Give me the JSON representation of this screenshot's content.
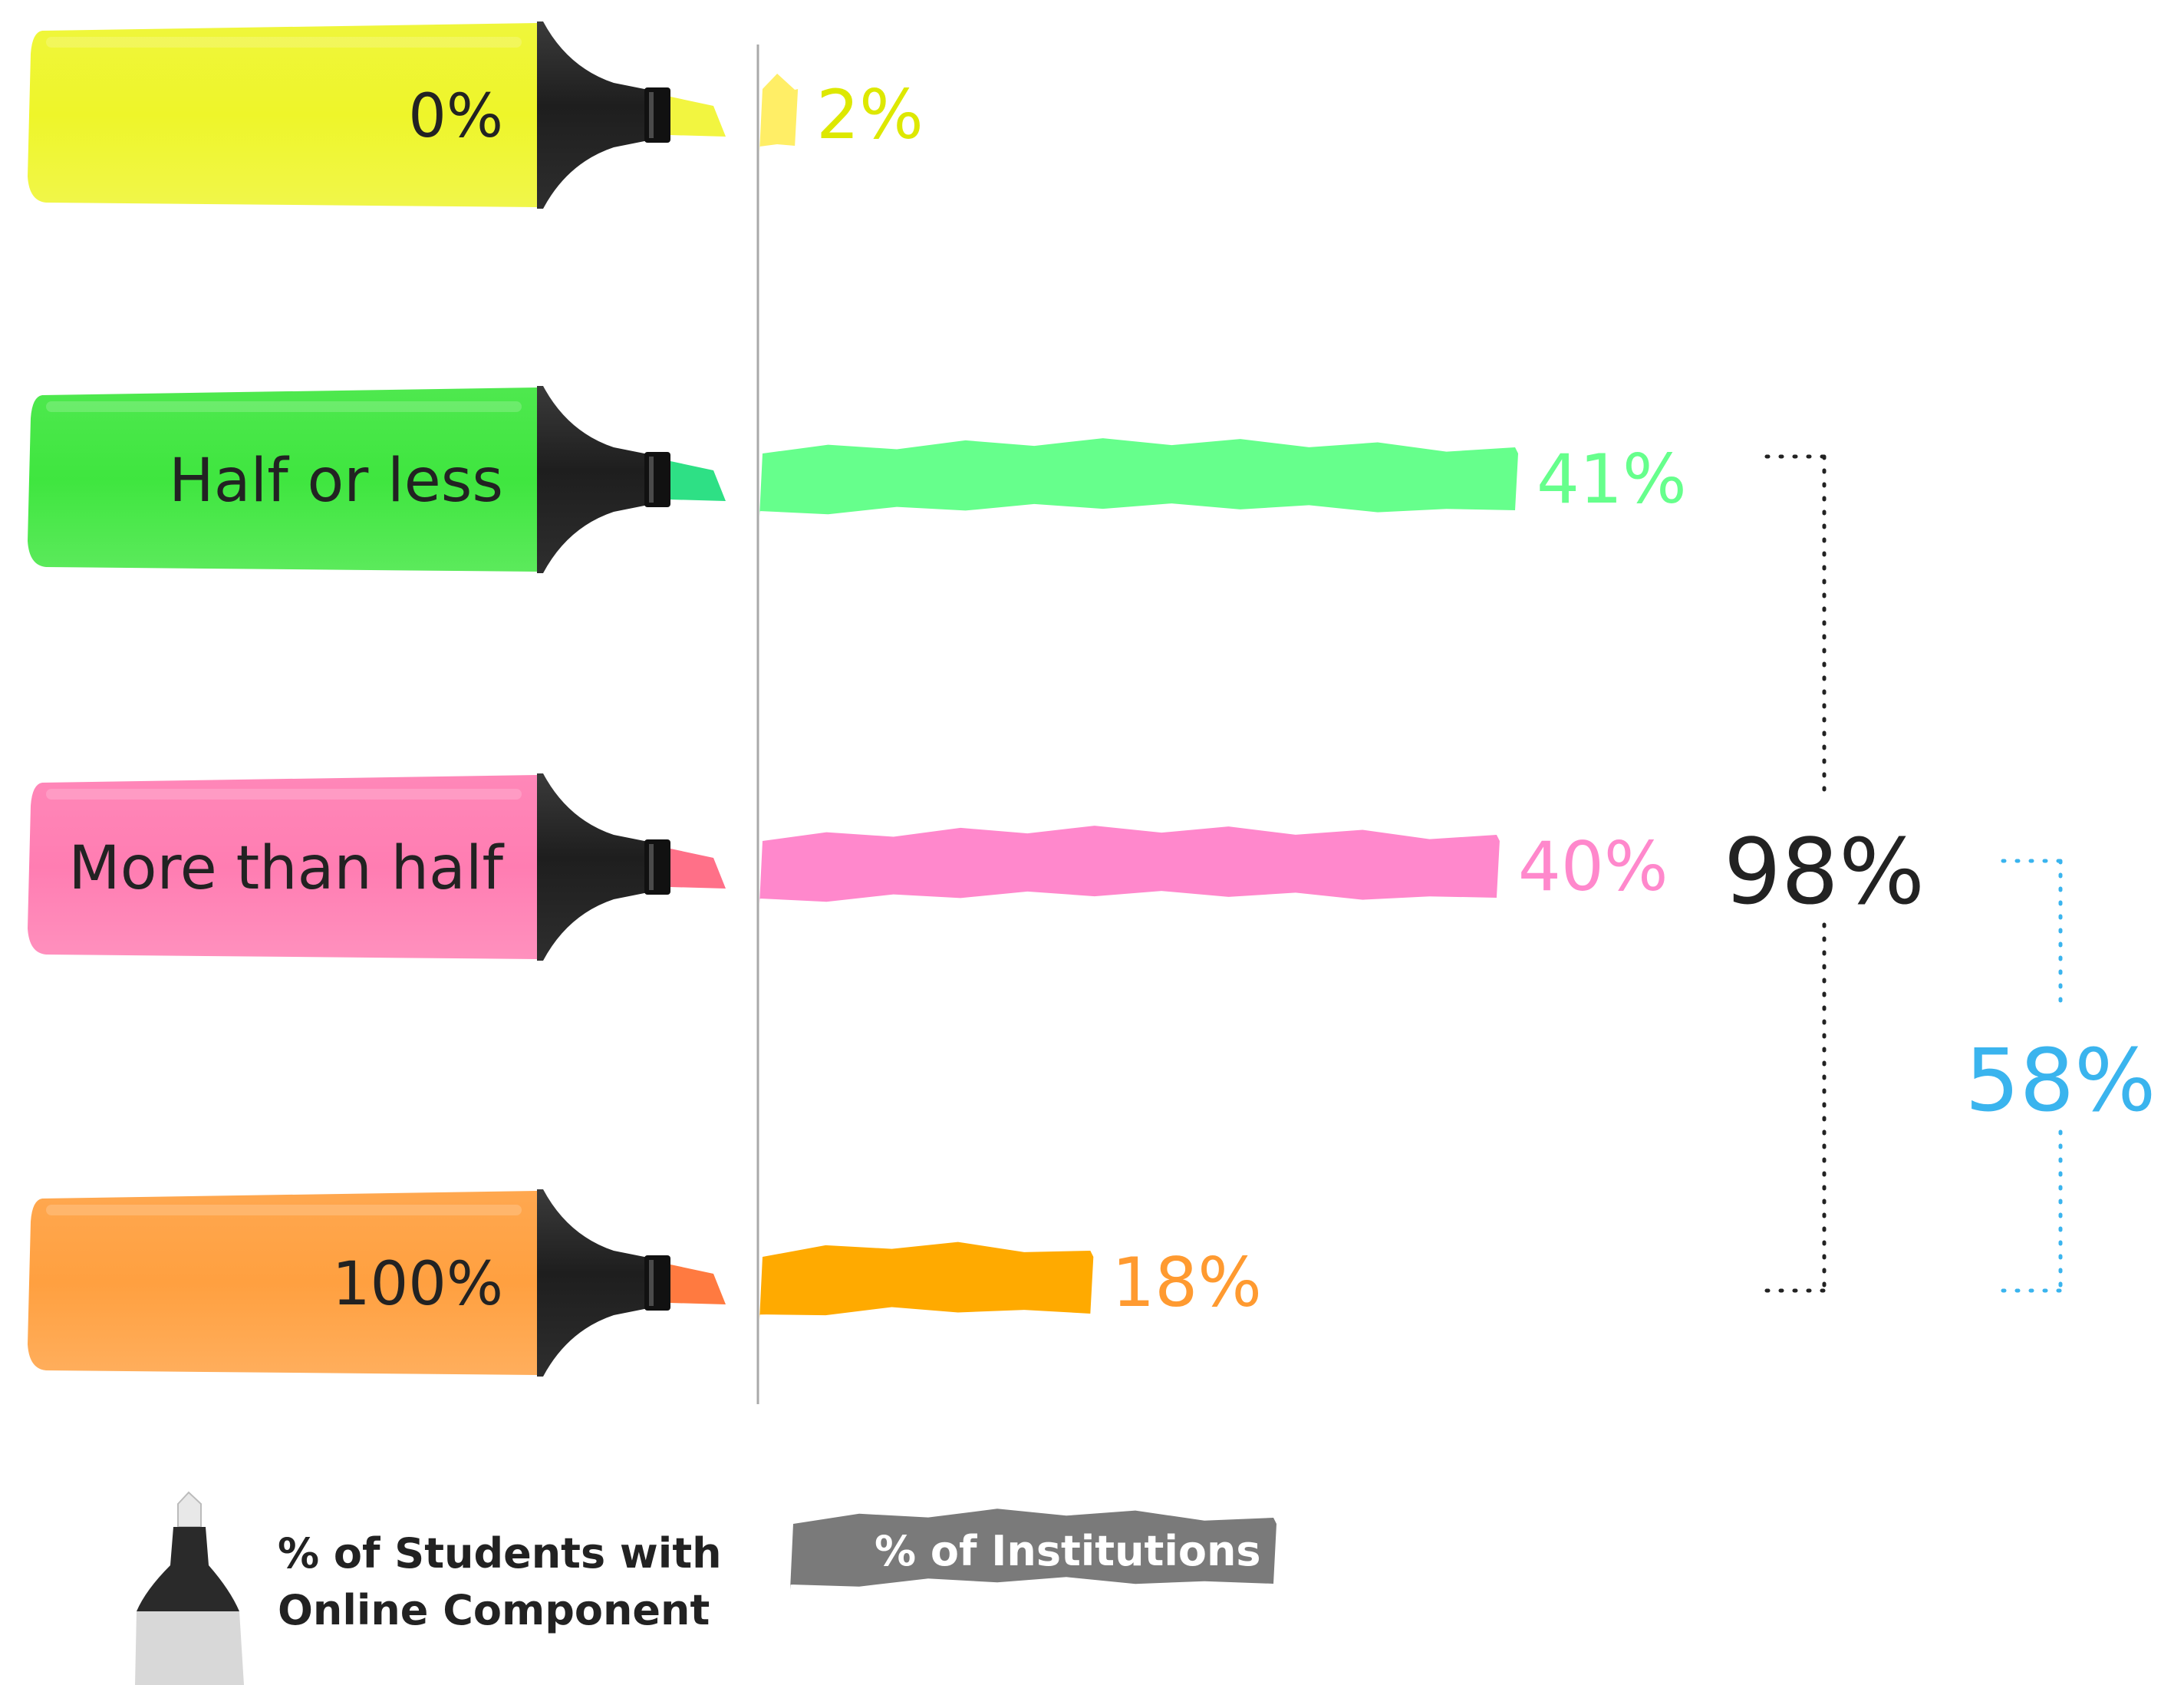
{
  "chart_data": {
    "type": "bar",
    "orientation": "horizontal",
    "categories": [
      "0%",
      "Half or less",
      "More than half",
      "100%"
    ],
    "values": [
      2,
      41,
      40,
      18
    ],
    "unit": "%",
    "value_labels": [
      "2%",
      "41%",
      "40%",
      "18%"
    ],
    "xlim": [
      0,
      41
    ],
    "grid": false,
    "annotations": [
      {
        "text": "98%",
        "covers": [
          "Half or less",
          "More than half",
          "100%"
        ],
        "color": "#222222"
      },
      {
        "text": "58%",
        "covers": [
          "More than half",
          "100%"
        ],
        "color": "#3ab4ee"
      }
    ],
    "legend": {
      "position": "bottom-left",
      "marker_label": "% of Students with Online Component",
      "marker_lines": [
        "% of Students with",
        "Online Component"
      ],
      "bar_label": "% of Institutions"
    }
  },
  "colors": {
    "bars": [
      "#ffee66",
      "#66ff8c",
      "#ff88cc",
      "#ffaa00"
    ],
    "labels": [
      "#dde800",
      "#66ff8c",
      "#ff88cc",
      "#ff9a30"
    ],
    "bodies": [
      "#eef52a",
      "#3fe63f",
      "#ff7db2",
      "#ffa040"
    ],
    "tips": [
      "#f2f540",
      "#2ee085",
      "#ff7088",
      "#ff7a40"
    ],
    "legend": "#7a7a7a",
    "bracket_total": "#222222",
    "bracket_majority": "#3ab4ee"
  },
  "icons": [
    "highlighter-marker-icon"
  ]
}
